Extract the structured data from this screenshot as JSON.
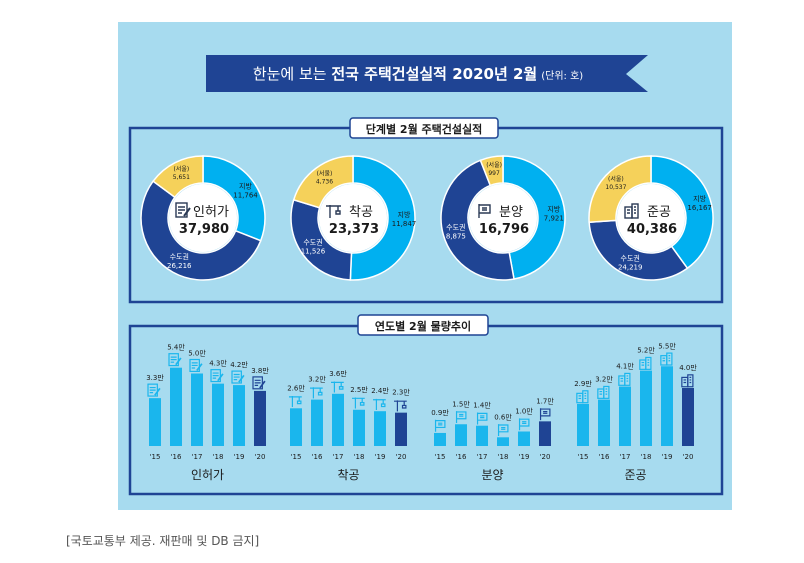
{
  "header": {
    "title_prefix": "한눈에 보는 ",
    "title_bold": "전국 주택건설실적 2020년 2월",
    "unit": "(단위: 호)"
  },
  "section1_title": "단계별 2월 주택건설실적",
  "section2_title": "연도별 2월 물량추이",
  "caption": "[국토교통부 제공. 재판매 및 DB 금지]",
  "colors": {
    "background": "#a7dbef",
    "capital": "#1f4494",
    "local": "#00b0f0",
    "seoul": "#f5d15a",
    "bar": "#1ab6ed",
    "bar_latest": "#1f4494",
    "frame": "#1f4494"
  },
  "chart_data": [
    {
      "type": "pie",
      "title": "인허가",
      "total": "37,980",
      "slices": [
        {
          "label": "지방",
          "value": 11764,
          "display": "11,764"
        },
        {
          "label": "수도권",
          "value": 26216,
          "display": "26,216"
        }
      ],
      "seoul": {
        "label": "(서울)",
        "value": 5651,
        "display": "5,651"
      },
      "icon": "permit-document-icon"
    },
    {
      "type": "pie",
      "title": "착공",
      "total": "23,373",
      "slices": [
        {
          "label": "지방",
          "value": 11847,
          "display": "11,847"
        },
        {
          "label": "수도권",
          "value": 11526,
          "display": "11,526"
        }
      ],
      "seoul": {
        "label": "(서울)",
        "value": 4736,
        "display": "4,736"
      },
      "icon": "crane-icon"
    },
    {
      "type": "pie",
      "title": "분양",
      "total": "16,796",
      "slices": [
        {
          "label": "지방",
          "value": 7921,
          "display": "7,921"
        },
        {
          "label": "수도권",
          "value": 8875,
          "display": "8,875"
        }
      ],
      "seoul": {
        "label": "(서울)",
        "value": 997,
        "display": "997"
      },
      "icon": "sale-sign-icon"
    },
    {
      "type": "pie",
      "title": "준공",
      "total": "40,386",
      "slices": [
        {
          "label": "지방",
          "value": 16167,
          "display": "16,167"
        },
        {
          "label": "수도권",
          "value": 24219,
          "display": "24,219"
        }
      ],
      "seoul": {
        "label": "(서울)",
        "value": 10537,
        "display": "10,537"
      },
      "icon": "building-icon"
    },
    {
      "type": "bar",
      "title": "인허가",
      "categories": [
        "'15",
        "'16",
        "'17",
        "'18",
        "'19",
        "'20"
      ],
      "values": [
        3.3,
        5.4,
        5.0,
        4.3,
        4.2,
        3.8
      ],
      "labels": [
        "3.3만",
        "5.4만",
        "5.0만",
        "4.3만",
        "4.2만",
        "3.8만"
      ],
      "icon": "permit-document-icon"
    },
    {
      "type": "bar",
      "title": "착공",
      "categories": [
        "'15",
        "'16",
        "'17",
        "'18",
        "'19",
        "'20"
      ],
      "values": [
        2.6,
        3.2,
        3.6,
        2.5,
        2.4,
        2.3
      ],
      "labels": [
        "2.6만",
        "3.2만",
        "3.6만",
        "2.5만",
        "2.4만",
        "2.3만"
      ],
      "icon": "crane-icon"
    },
    {
      "type": "bar",
      "title": "분양",
      "categories": [
        "'15",
        "'16",
        "'17",
        "'18",
        "'19",
        "'20"
      ],
      "values": [
        0.9,
        1.5,
        1.4,
        0.6,
        1.0,
        1.7
      ],
      "labels": [
        "0.9만",
        "1.5만",
        "1.4만",
        "0.6만",
        "1.0만",
        "1.7만"
      ],
      "icon": "sale-sign-icon"
    },
    {
      "type": "bar",
      "title": "준공",
      "categories": [
        "'15",
        "'16",
        "'17",
        "'18",
        "'19",
        "'20"
      ],
      "values": [
        2.9,
        3.2,
        4.1,
        5.2,
        5.5,
        4.0
      ],
      "labels": [
        "2.9만",
        "3.2만",
        "4.1만",
        "5.2만",
        "5.5만",
        "4.0만"
      ],
      "icon": "building-icon"
    }
  ]
}
